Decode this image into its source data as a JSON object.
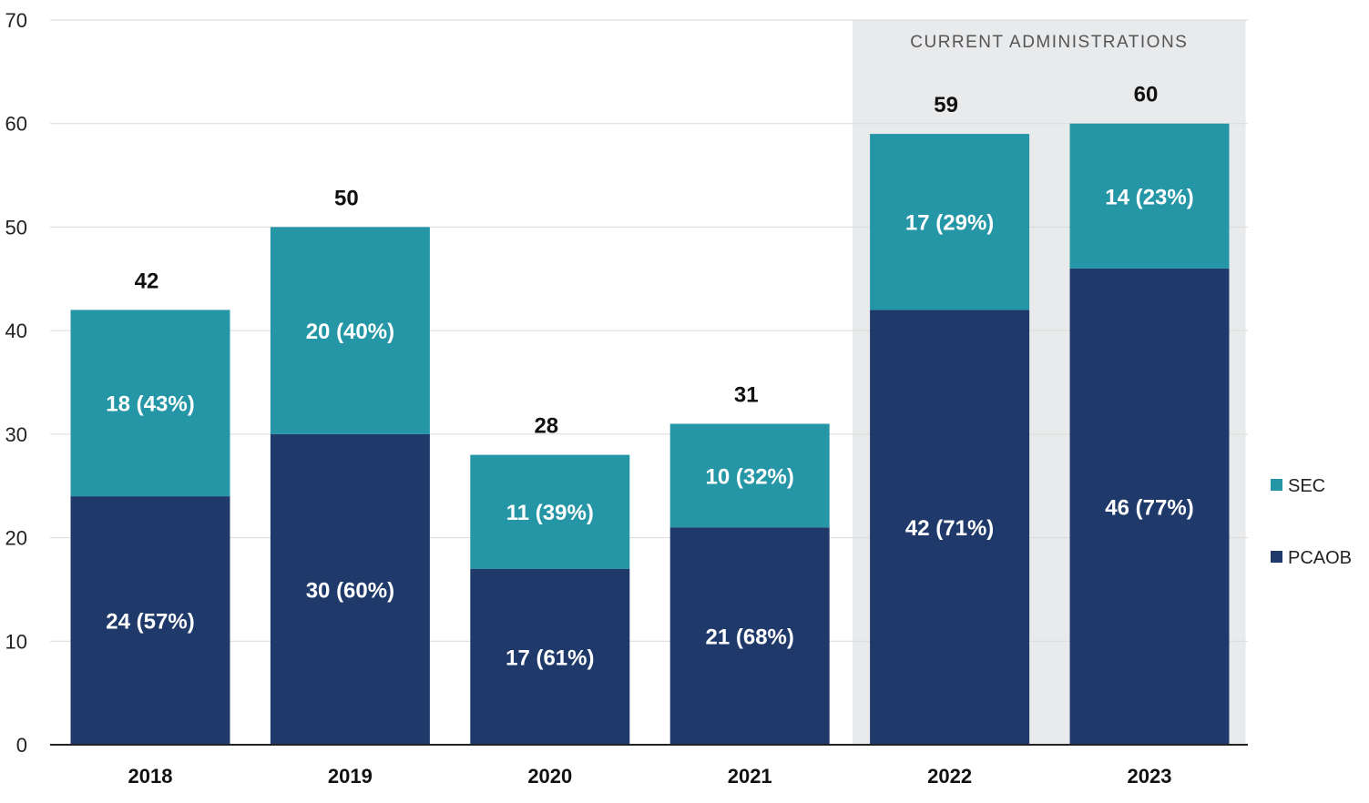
{
  "chart_data": {
    "type": "bar",
    "stacked": true,
    "categories": [
      "2018",
      "2019",
      "2020",
      "2021",
      "2022",
      "2023"
    ],
    "series": [
      {
        "name": "PCAOB",
        "color": "#1f3a6a",
        "values": [
          24,
          30,
          17,
          21,
          42,
          46
        ],
        "labels": [
          "24 (57%)",
          "30 (60%)",
          "17 (61%)",
          "21 (68%)",
          "42 (71%)",
          "46 (77%)"
        ]
      },
      {
        "name": "SEC",
        "color": "#2596a6",
        "values": [
          18,
          20,
          11,
          10,
          17,
          14
        ],
        "labels": [
          "18 (43%)",
          "20 (40%)",
          "11 (39%)",
          "10 (32%)",
          "17 (29%)",
          "14 (23%)"
        ]
      }
    ],
    "totals": [
      "42",
      "50",
      "28",
      "31",
      "59",
      "60"
    ],
    "ylim": [
      0,
      70
    ],
    "yticks": [
      "0",
      "10",
      "20",
      "30",
      "40",
      "50",
      "60",
      "70"
    ],
    "grid": true,
    "legend_position": "right",
    "annotation": {
      "label": "CURRENT ADMINISTRATIONS",
      "categories": [
        "2022",
        "2023"
      ],
      "color": "#e9eaec"
    }
  }
}
